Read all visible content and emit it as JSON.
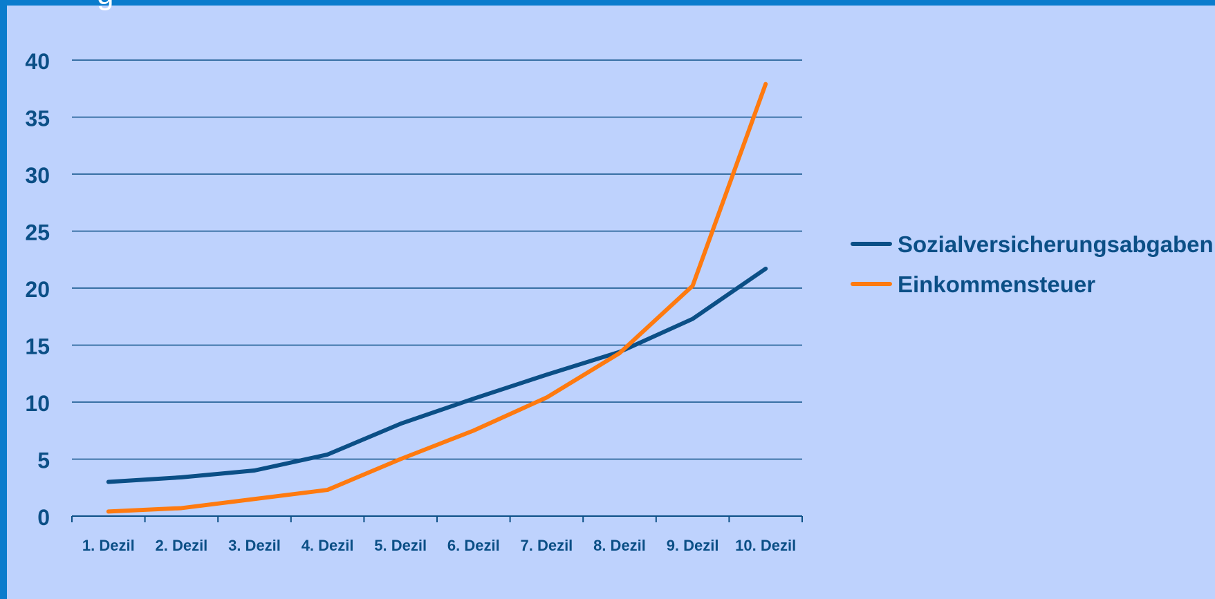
{
  "header": {
    "top_fragment": "g"
  },
  "colors": {
    "background_outer": "#0a7ccd",
    "background_plot": "#bed2fd",
    "grid": "#0b4f86",
    "series_1": "#0b4f86",
    "series_2": "#ff7a0f"
  },
  "chart_data": {
    "type": "line",
    "title": "",
    "xlabel": "",
    "ylabel": "",
    "categories": [
      "1. Dezil",
      "2. Dezil",
      "3. Dezil",
      "4. Dezil",
      "5. Dezil",
      "6. Dezil",
      "7. Dezil",
      "8. Dezil",
      "9. Dezil",
      "10. Dezil"
    ],
    "y_ticks": [
      "0",
      "5",
      "10",
      "15",
      "20",
      "25",
      "30",
      "35",
      "40"
    ],
    "ylim": [
      0,
      40
    ],
    "grid": true,
    "legend_position": "right",
    "series": [
      {
        "name": "Sozialversicherungsabgaben",
        "color": "#0b4f86",
        "values": [
          3.0,
          3.4,
          4.0,
          5.4,
          8.1,
          10.3,
          12.4,
          14.4,
          17.3,
          21.7
        ]
      },
      {
        "name": "Einkommensteuer",
        "color": "#ff7a0f",
        "values": [
          0.4,
          0.7,
          1.5,
          2.3,
          5.0,
          7.5,
          10.4,
          14.3,
          20.2,
          37.9
        ]
      }
    ]
  }
}
